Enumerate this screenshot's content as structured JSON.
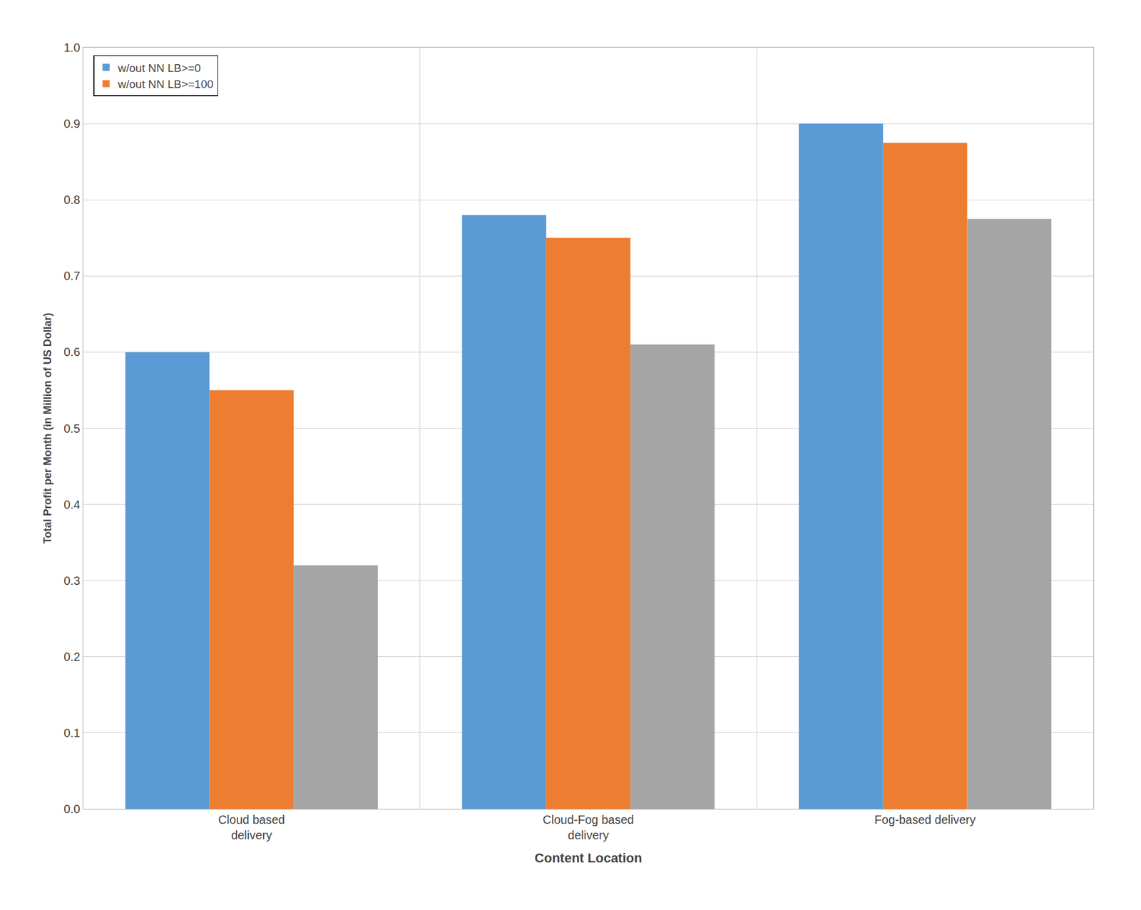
{
  "chart_data": {
    "type": "bar",
    "xlabel": "Content Location",
    "ylabel": "Total Profit per Month (in Million of US Dollar)",
    "categories": [
      "Cloud based\ndelivery",
      "Cloud-Fog based\ndelivery",
      "Fog-based delivery"
    ],
    "series": [
      {
        "name": "w/out NN LB>=0",
        "color": "#5B9BD5",
        "values": [
          0.6,
          0.78,
          0.9
        ]
      },
      {
        "name": "w/out NN LB>=100",
        "color": "#ED7D31",
        "values": [
          0.55,
          0.75,
          0.875
        ]
      },
      {
        "color": "#A5A5A5",
        "values": [
          0.32,
          0.61,
          0.775
        ]
      }
    ],
    "ylim": [
      0,
      1.0
    ],
    "yticks": [
      {
        "value": 0,
        "label": "0.0"
      },
      0.1,
      0.2,
      0.3,
      0.4,
      0.5,
      0.6,
      0.7,
      0.8,
      0.9,
      {
        "value": 1,
        "label": "1.0"
      }
    ],
    "grid": true,
    "legend": "upper left"
  }
}
